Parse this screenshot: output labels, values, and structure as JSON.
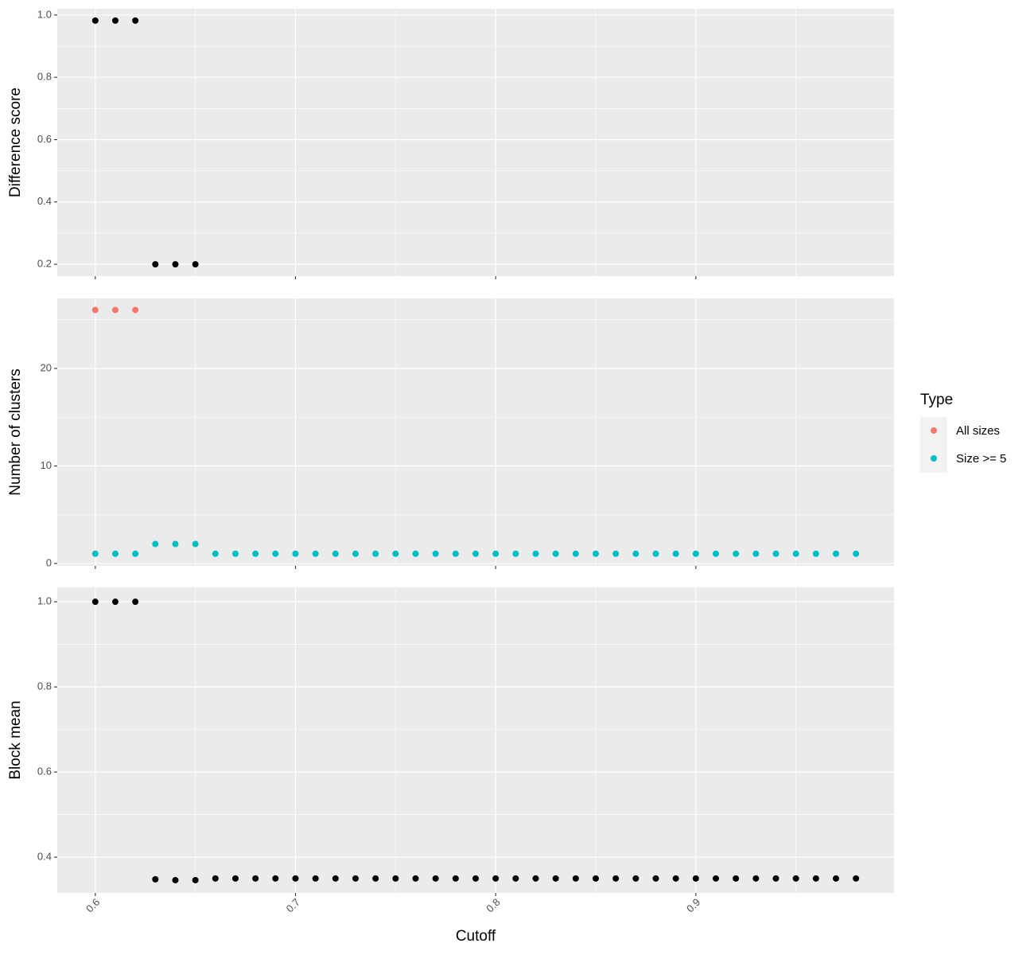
{
  "chart_data": [
    {
      "type": "scatter",
      "y_label": "Difference score",
      "x": [
        0.6,
        0.61,
        0.62,
        0.63,
        0.64,
        0.65
      ],
      "values": [
        0.982,
        0.982,
        0.982,
        0.2,
        0.2,
        0.2
      ],
      "color": "#000000",
      "xlim": [
        0.581,
        0.999
      ],
      "ylim": [
        0.162,
        1.02
      ],
      "xticks": [
        0.6,
        0.7,
        0.8,
        0.9
      ],
      "yticks": [
        0.2,
        0.4,
        0.6,
        0.8,
        {
          "value": 1,
          "label": "1.0"
        }
      ],
      "grid": true
    },
    {
      "type": "scatter",
      "y_label": "Number of clusters",
      "x": [
        0.6,
        0.61,
        0.62,
        0.63,
        0.64,
        0.65,
        0.66,
        0.67,
        0.68,
        0.69,
        0.7,
        0.71,
        0.72,
        0.73,
        0.74,
        0.75,
        0.76,
        0.77,
        0.78,
        0.79,
        0.8,
        0.81,
        0.82,
        0.83,
        0.84,
        0.85,
        0.86,
        0.87,
        0.88,
        0.89,
        0.9,
        0.91,
        0.92,
        0.93,
        0.94,
        0.95,
        0.96,
        0.97,
        0.98
      ],
      "series": [
        {
          "name": "All sizes",
          "color": "#F8766D",
          "values": [
            26,
            26,
            26,
            null,
            null,
            null,
            null,
            null,
            null,
            null,
            null,
            null,
            null,
            null,
            null,
            null,
            null,
            null,
            null,
            null,
            null,
            null,
            null,
            null,
            null,
            null,
            null,
            null,
            null,
            null,
            null,
            null,
            null,
            null,
            null,
            null,
            null,
            null,
            null
          ]
        },
        {
          "name": "Size >= 5",
          "color": "#00BFC4",
          "values": [
            1,
            1,
            1,
            2,
            2,
            2,
            1,
            1,
            1,
            1,
            1,
            1,
            1,
            1,
            1,
            1,
            1,
            1,
            1,
            1,
            1,
            1,
            1,
            1,
            1,
            1,
            1,
            1,
            1,
            1,
            1,
            1,
            1,
            1,
            1,
            1,
            1,
            1,
            1
          ]
        }
      ],
      "legend_title": "Type",
      "legend": "right",
      "xlim": [
        0.581,
        0.999
      ],
      "ylim": [
        -0.24,
        27.18
      ],
      "xticks": [
        0.6,
        0.7,
        0.8,
        0.9
      ],
      "yticks": [
        0,
        10,
        20
      ],
      "grid": true
    },
    {
      "type": "scatter",
      "y_label": "Block mean",
      "x_label": "Cutoff",
      "x": [
        0.6,
        0.61,
        0.62,
        0.63,
        0.64,
        0.65,
        0.66,
        0.67,
        0.68,
        0.69,
        0.7,
        0.71,
        0.72,
        0.73,
        0.74,
        0.75,
        0.76,
        0.77,
        0.78,
        0.79,
        0.8,
        0.81,
        0.82,
        0.83,
        0.84,
        0.85,
        0.86,
        0.87,
        0.88,
        0.89,
        0.9,
        0.91,
        0.92,
        0.93,
        0.94,
        0.95,
        0.96,
        0.97,
        0.98
      ],
      "values": [
        1,
        1,
        1,
        0.348,
        0.346,
        0.346,
        0.35,
        0.35,
        0.35,
        0.35,
        0.35,
        0.35,
        0.35,
        0.35,
        0.35,
        0.35,
        0.35,
        0.35,
        0.35,
        0.35,
        0.35,
        0.35,
        0.35,
        0.35,
        0.35,
        0.35,
        0.35,
        0.35,
        0.35,
        0.35,
        0.35,
        0.35,
        0.35,
        0.35,
        0.35,
        0.35,
        0.35,
        0.35,
        0.35
      ],
      "color": "#000000",
      "xlim": [
        0.581,
        0.999
      ],
      "ylim": [
        0.316,
        1.034
      ],
      "xticks": [
        0.6,
        0.7,
        0.8,
        0.9
      ],
      "yticks": [
        0.4,
        0.6,
        0.8,
        {
          "value": 1,
          "label": "1.0"
        }
      ],
      "grid": true
    }
  ]
}
